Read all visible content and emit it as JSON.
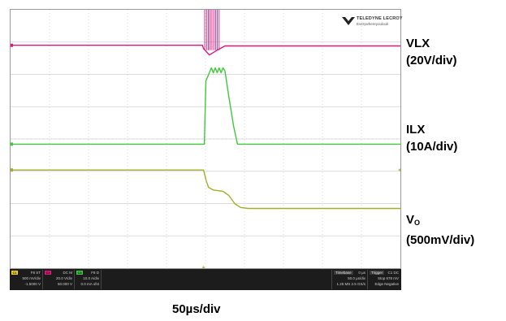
{
  "logo": {
    "brand": "TELEDYNE LECROY",
    "tagline": "Everywhereyoulook"
  },
  "labels": {
    "vlx": [
      "VLX",
      "(20V/div)"
    ],
    "ilx": [
      "ILX",
      "(10A/div)"
    ],
    "vo_main": "V",
    "vo_sub": "O",
    "vo_scale": "(500mV/div)",
    "timebase": "50µs/div"
  },
  "colors": {
    "background": "#ffffff",
    "grid": "#d0d0d0",
    "vlx": "#e0157d",
    "ilx": "#3ec83a",
    "vo": "#a4ad2c",
    "markers": "#b5c23c"
  },
  "status": {
    "c1": {
      "tag": "C1",
      "lines": [
        "F8  ST",
        "500 mV/div",
        "-1.5000 V"
      ]
    },
    "c2": {
      "tag": "C2",
      "lines": [
        "DC  M",
        "20.0 V/div",
        "50.000 V"
      ]
    },
    "c3": {
      "tag": "C3",
      "lines": [
        "F8  D",
        "10.0 A/div",
        "0.0 mA ofst"
      ]
    },
    "timebase": {
      "header": "Timebase",
      "value": "0 µs",
      "lines": [
        "50.0 µs/div",
        "1.25 MS  2.5 GS/s"
      ]
    },
    "trigger": {
      "header": "Trigger",
      "value": "C1 DC",
      "lines": [
        "Stop  678 mV",
        "Edge  Negative"
      ]
    }
  },
  "chart_data": {
    "type": "line",
    "grid": {
      "divisions_x": 10,
      "divisions_y": 8,
      "shown": true
    },
    "x_unit": "div",
    "x_range": [
      0,
      10
    ],
    "y_unit": "div",
    "y_range": [
      0,
      8
    ],
    "series": [
      {
        "name": "VLX",
        "color": "#e0157d",
        "points": [
          [
            0,
            6.9
          ],
          [
            4.92,
            6.9
          ],
          [
            4.95,
            6.8
          ],
          [
            5.1,
            6.6
          ],
          [
            5.3,
            6.75
          ],
          [
            5.5,
            6.88
          ],
          [
            10,
            6.88
          ]
        ],
        "ringing": {
          "x_start": 4.98,
          "x_end": 5.35,
          "y_low": 6.75,
          "y_high": 8.0,
          "pulses": 9
        }
      },
      {
        "name": "ILX",
        "color": "#3ec83a",
        "points": [
          [
            0,
            3.84
          ],
          [
            4.97,
            3.84
          ],
          [
            5.01,
            5.8
          ],
          [
            5.1,
            6.05
          ],
          [
            5.15,
            6.2
          ],
          [
            5.2,
            6.05
          ],
          [
            5.25,
            6.2
          ],
          [
            5.3,
            6.05
          ],
          [
            5.35,
            6.2
          ],
          [
            5.4,
            6.05
          ],
          [
            5.45,
            6.2
          ],
          [
            5.5,
            6.1
          ],
          [
            5.6,
            5.3
          ],
          [
            5.72,
            4.4
          ],
          [
            5.82,
            3.84
          ],
          [
            10,
            3.84
          ]
        ]
      },
      {
        "name": "VO",
        "color": "#a4ad2c",
        "points": [
          [
            0,
            3.04
          ],
          [
            4.95,
            3.04
          ],
          [
            5.02,
            2.7
          ],
          [
            5.08,
            2.5
          ],
          [
            5.2,
            2.42
          ],
          [
            5.45,
            2.38
          ],
          [
            5.6,
            2.25
          ],
          [
            5.75,
            2.0
          ],
          [
            5.9,
            1.88
          ],
          [
            6.1,
            1.85
          ],
          [
            10,
            1.85
          ]
        ]
      }
    ]
  }
}
